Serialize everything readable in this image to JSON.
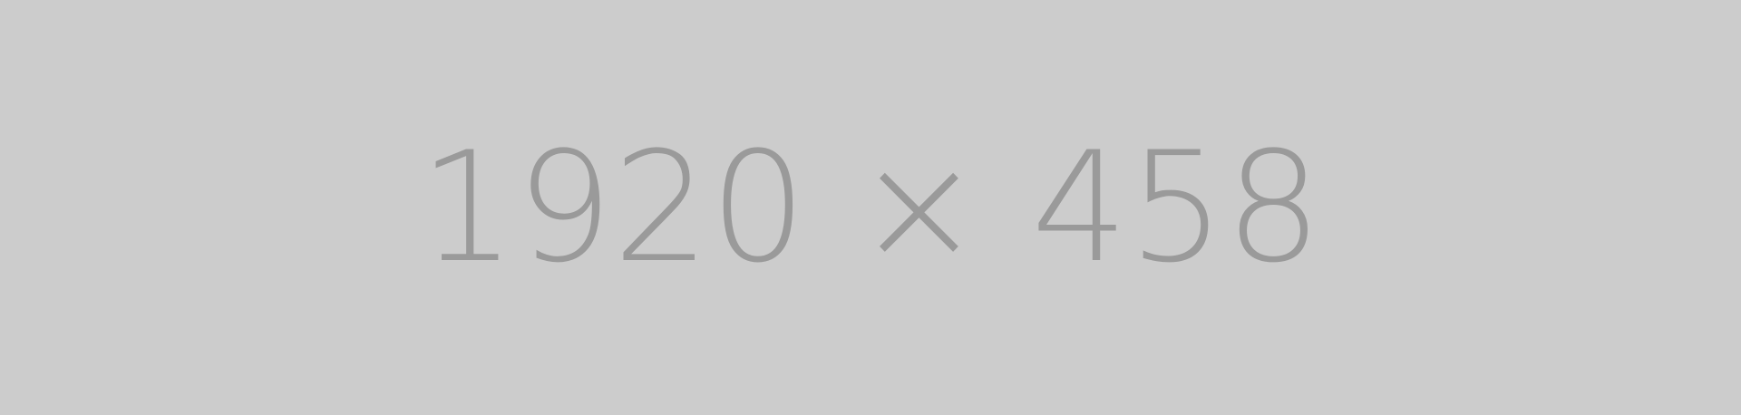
{
  "placeholder": {
    "text": "1920 × 458",
    "background_color": "#cccccc",
    "text_color": "#9a9a9a"
  }
}
